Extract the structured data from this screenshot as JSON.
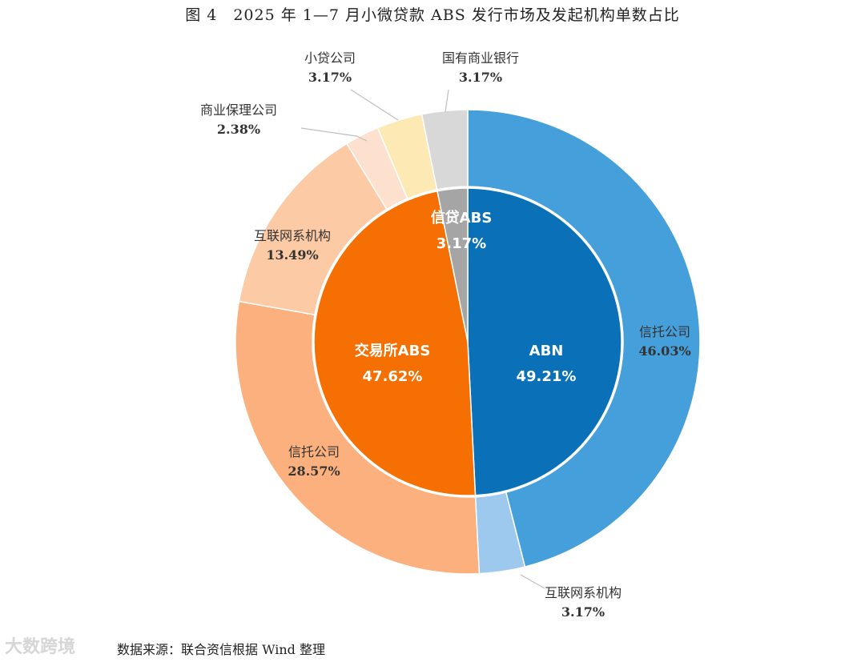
{
  "title": "图 4　2025 年 1—7 月小微贷款 ABS 发行市场及发起机构单数占比",
  "source_note": "数据来源：联合资信根据 Wind 整理",
  "watermark": "大数跨境",
  "chart_data": {
    "type": "pie",
    "inner_ring": [
      {
        "name": "ABN",
        "value": 49.21,
        "label": "49.21%",
        "color": "#0a70b8"
      },
      {
        "name": "交易所ABS",
        "value": 47.62,
        "label": "47.62%",
        "color": "#f56f02"
      },
      {
        "name": "信贷ABS",
        "value": 3.17,
        "label": "3.17%",
        "color": "#a5a5a5"
      }
    ],
    "outer_ring": [
      {
        "name": "信托公司",
        "value": 46.03,
        "label": "46.03%",
        "color": "#449fdb"
      },
      {
        "name": "互联网系机构",
        "value": 3.17,
        "label": "3.17%",
        "color": "#9ec9ee"
      },
      {
        "name": "信托公司",
        "value": 28.57,
        "label": "28.57%",
        "color": "#fbb07d"
      },
      {
        "name": "互联网系机构",
        "value": 13.49,
        "label": "13.49%",
        "color": "#fccaa5"
      },
      {
        "name": "商业保理公司",
        "value": 2.38,
        "label": "2.38%",
        "color": "#fde0cd"
      },
      {
        "name": "小贷公司",
        "value": 3.17,
        "label": "3.17%",
        "color": "#fde9b4"
      },
      {
        "name": "国有商业银行",
        "value": 3.17,
        "label": "3.17%",
        "color": "#d8d8d8"
      }
    ]
  }
}
